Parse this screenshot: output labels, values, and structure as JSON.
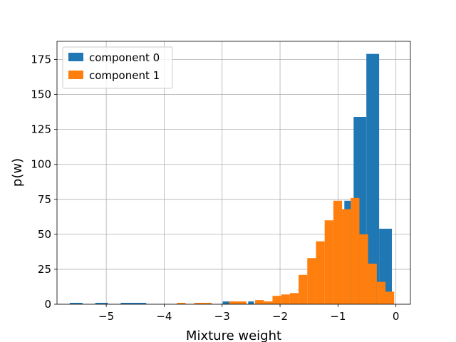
{
  "chart_data": {
    "type": "bar",
    "xlabel": "Mixture weight",
    "ylabel": "p(w)",
    "xlim": [
      -5.85,
      0.25
    ],
    "ylim": [
      0,
      188
    ],
    "xticks": [
      -5,
      -4,
      -3,
      -2,
      -1,
      0
    ],
    "xtick_labels": [
      "−5",
      "−4",
      "−3",
      "−2",
      "−1",
      "0"
    ],
    "yticks": [
      0,
      25,
      50,
      75,
      100,
      125,
      150,
      175
    ],
    "ytick_labels": [
      "0",
      "25",
      "50",
      "75",
      "100",
      "125",
      "150",
      "175"
    ],
    "grid": true,
    "legend": {
      "position": "top-left"
    },
    "series": [
      {
        "name": "component 0",
        "color": "#1f77b4",
        "bins": [
          {
            "x0": -5.63,
            "x1": -5.41,
            "count": 1
          },
          {
            "x0": -5.19,
            "x1": -4.97,
            "count": 1
          },
          {
            "x0": -4.75,
            "x1": -4.31,
            "count": 1
          },
          {
            "x0": -2.99,
            "x1": -2.77,
            "count": 2
          },
          {
            "x0": -2.55,
            "x1": -2.45,
            "count": 2
          },
          {
            "x0": -0.89,
            "x1": -0.73,
            "count": 74
          },
          {
            "x0": -0.73,
            "x1": -0.51,
            "count": 134
          },
          {
            "x0": -0.51,
            "x1": -0.29,
            "count": 179
          },
          {
            "x0": -0.29,
            "x1": -0.07,
            "count": 54
          }
        ]
      },
      {
        "name": "component 1",
        "color": "#ff7f0e",
        "bins": [
          {
            "x0": -3.78,
            "x1": -3.63,
            "count": 1
          },
          {
            "x0": -3.48,
            "x1": -3.18,
            "count": 1
          },
          {
            "x0": -2.88,
            "x1": -2.58,
            "count": 2
          },
          {
            "x0": -2.43,
            "x1": -2.28,
            "count": 3
          },
          {
            "x0": -2.28,
            "x1": -2.13,
            "count": 2
          },
          {
            "x0": -2.13,
            "x1": -1.98,
            "count": 6
          },
          {
            "x0": -1.98,
            "x1": -1.83,
            "count": 7
          },
          {
            "x0": -1.83,
            "x1": -1.68,
            "count": 8
          },
          {
            "x0": -1.68,
            "x1": -1.53,
            "count": 21
          },
          {
            "x0": -1.53,
            "x1": -1.38,
            "count": 33
          },
          {
            "x0": -1.38,
            "x1": -1.23,
            "count": 45
          },
          {
            "x0": -1.23,
            "x1": -1.08,
            "count": 60
          },
          {
            "x0": -1.08,
            "x1": -0.93,
            "count": 74
          },
          {
            "x0": -0.93,
            "x1": -0.78,
            "count": 68
          },
          {
            "x0": -0.78,
            "x1": -0.63,
            "count": 76
          },
          {
            "x0": -0.63,
            "x1": -0.48,
            "count": 50
          },
          {
            "x0": -0.48,
            "x1": -0.33,
            "count": 29
          },
          {
            "x0": -0.33,
            "x1": -0.18,
            "count": 16
          },
          {
            "x0": -0.18,
            "x1": -0.03,
            "count": 9
          }
        ]
      }
    ]
  }
}
